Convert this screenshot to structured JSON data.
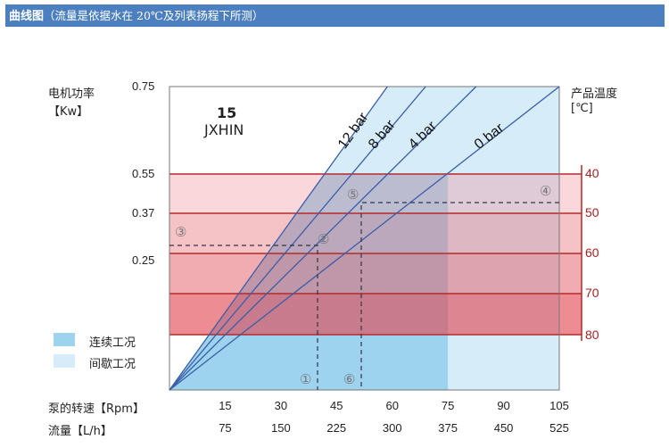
{
  "header": {
    "title": "曲线图",
    "subtitle": "（流量是依据水在 20℃及列表扬程下所测）"
  },
  "chart_data": {
    "type": "line",
    "model_label": [
      "15",
      "JXHIN"
    ],
    "y_left_label": [
      "电机功率",
      "【Kw】"
    ],
    "y_left_ticks": [
      "0.75",
      "0.55",
      "0.37",
      "0.25"
    ],
    "y_right_label": [
      "产品温度",
      "[℃]"
    ],
    "y_right_ticks": [
      "40",
      "50",
      "60",
      "70",
      "80"
    ],
    "x_rows": [
      {
        "label": "泵的转速【Rpm】",
        "ticks": [
          "15",
          "30",
          "45",
          "60",
          "75",
          "90",
          "105"
        ]
      },
      {
        "label": "流量【L/h】",
        "ticks": [
          "75",
          "150",
          "225",
          "300",
          "375",
          "450",
          "525"
        ]
      }
    ],
    "xlim": [
      0,
      105
    ],
    "series": [
      {
        "name": "12 bar",
        "x_at_top_rpm": 58.7
      },
      {
        "name": "8 bar",
        "x_at_top_rpm": 69
      },
      {
        "name": "4 bar",
        "x_at_top_rpm": 82.6
      },
      {
        "name": "0 bar",
        "x_at_top_rpm": 105
      }
    ],
    "continuous_max_rpm": 75,
    "legend": [
      {
        "label": "连续工况",
        "color": "#9dd3ee"
      },
      {
        "label": "间歇工况",
        "color": "#d6ecf8"
      }
    ],
    "markers": [
      "①",
      "②",
      "③",
      "④",
      "⑤",
      "⑥"
    ],
    "colors": {
      "line": "#3a5ea8",
      "axis_red": "#b52a2a"
    }
  }
}
